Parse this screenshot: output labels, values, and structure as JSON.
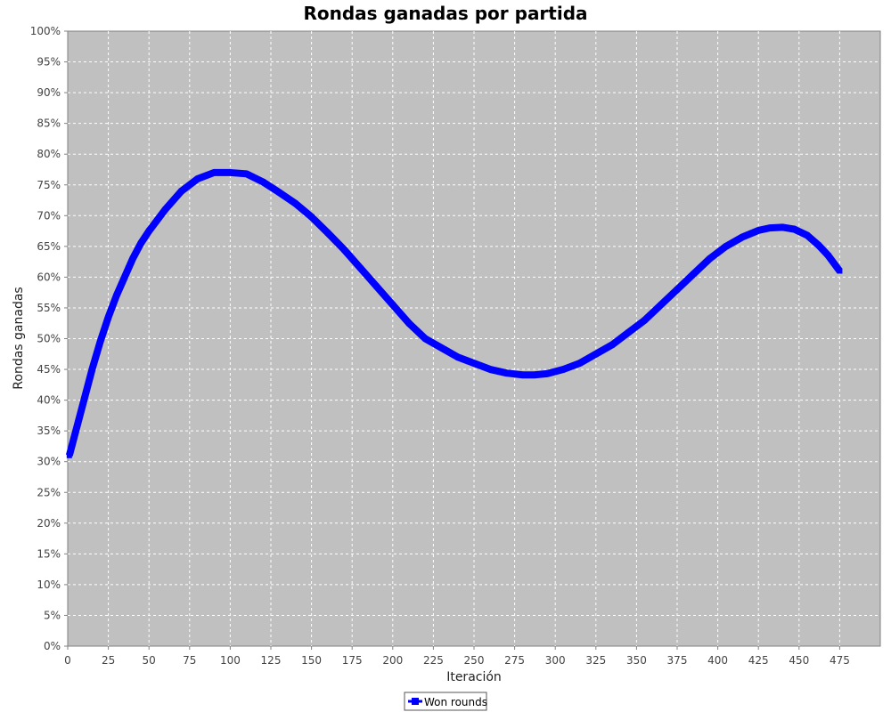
{
  "chart_data": {
    "type": "line",
    "title": "Rondas ganadas por partida",
    "xlabel": "Iteración",
    "ylabel": "Rondas ganadas",
    "xlim": [
      0,
      500
    ],
    "ylim": [
      0,
      100
    ],
    "x_ticks": [
      "0",
      "25",
      "50",
      "75",
      "100",
      "125",
      "150",
      "175",
      "200",
      "225",
      "250",
      "275",
      "300",
      "325",
      "350",
      "375",
      "400",
      "425",
      "450",
      "475"
    ],
    "y_ticks": [
      "0%",
      "5%",
      "10%",
      "15%",
      "20%",
      "25%",
      "30%",
      "35%",
      "40%",
      "45%",
      "50%",
      "55%",
      "60%",
      "65%",
      "70%",
      "75%",
      "80%",
      "85%",
      "90%",
      "95%",
      "100%"
    ],
    "grid": true,
    "legend_position": "bottom",
    "series": [
      {
        "name": "Won rounds",
        "color": "#0000ff",
        "x": [
          1,
          5,
          10,
          15,
          20,
          25,
          30,
          35,
          40,
          45,
          50,
          60,
          70,
          80,
          90,
          100,
          110,
          120,
          130,
          140,
          150,
          160,
          170,
          180,
          190,
          200,
          210,
          220,
          230,
          240,
          250,
          260,
          270,
          280,
          287,
          295,
          305,
          315,
          325,
          335,
          345,
          355,
          365,
          375,
          385,
          395,
          405,
          415,
          425,
          432,
          440,
          447,
          455,
          462,
          468,
          475
        ],
        "y": [
          31,
          35,
          40,
          45,
          49.5,
          53.5,
          57,
          60,
          63,
          65.5,
          67.5,
          71,
          74,
          76,
          77,
          77,
          76.8,
          75.5,
          73.8,
          72,
          69.8,
          67.2,
          64.5,
          61.5,
          58.5,
          55.5,
          52.5,
          50,
          48.5,
          47,
          46,
          45,
          44.4,
          44.1,
          44.1,
          44.3,
          45,
          46,
          47.5,
          49,
          51,
          53,
          55.5,
          58,
          60.5,
          63,
          65,
          66.5,
          67.6,
          68,
          68.1,
          67.8,
          66.8,
          65.2,
          63.5,
          61
        ]
      }
    ]
  }
}
